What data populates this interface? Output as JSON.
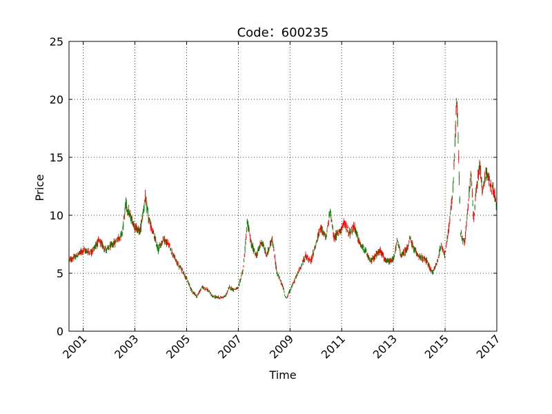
{
  "chart_data": {
    "type": "candlestick",
    "title": "Code：600235",
    "xlabel": "Time",
    "ylabel": "Price",
    "xlim": [
      2000.45,
      2017.0
    ],
    "ylim": [
      0,
      25
    ],
    "xticks": [
      {
        "value": 2001,
        "label": "2001"
      },
      {
        "value": 2003,
        "label": "2003"
      },
      {
        "value": 2005,
        "label": "2005"
      },
      {
        "value": 2007,
        "label": "2007"
      },
      {
        "value": 2009,
        "label": "2009"
      },
      {
        "value": 2011,
        "label": "2011"
      },
      {
        "value": 2013,
        "label": "2013"
      },
      {
        "value": 2015,
        "label": "2015"
      },
      {
        "value": 2017,
        "label": "2017"
      }
    ],
    "yticks": [
      {
        "value": 0,
        "label": "0"
      },
      {
        "value": 5,
        "label": "5"
      },
      {
        "value": 10,
        "label": "10"
      },
      {
        "value": 15,
        "label": "15"
      },
      {
        "value": 20,
        "label": "20"
      },
      {
        "value": 25,
        "label": "25"
      }
    ],
    "grid": true,
    "colors": {
      "up": "#ff0000",
      "down": "#008000"
    },
    "price_path": [
      [
        2000.45,
        6.1
      ],
      [
        2000.7,
        6.4
      ],
      [
        2001.0,
        7.0
      ],
      [
        2001.3,
        6.8
      ],
      [
        2001.6,
        7.8
      ],
      [
        2001.9,
        7.0
      ],
      [
        2002.2,
        7.6
      ],
      [
        2002.5,
        8.4
      ],
      [
        2002.65,
        11.0
      ],
      [
        2002.8,
        10.0
      ],
      [
        2003.0,
        9.0
      ],
      [
        2003.2,
        8.6
      ],
      [
        2003.4,
        11.5
      ],
      [
        2003.55,
        9.5
      ],
      [
        2003.7,
        8.5
      ],
      [
        2003.9,
        7.0
      ],
      [
        2004.1,
        8.0
      ],
      [
        2004.3,
        7.5
      ],
      [
        2004.6,
        6.0
      ],
      [
        2004.9,
        5.0
      ],
      [
        2005.2,
        3.5
      ],
      [
        2005.4,
        3.0
      ],
      [
        2005.6,
        3.8
      ],
      [
        2005.8,
        3.6
      ],
      [
        2006.0,
        3.0
      ],
      [
        2006.3,
        2.9
      ],
      [
        2006.5,
        3.0
      ],
      [
        2006.65,
        3.8
      ],
      [
        2006.8,
        3.6
      ],
      [
        2007.0,
        3.7
      ],
      [
        2007.2,
        5.5
      ],
      [
        2007.35,
        9.5
      ],
      [
        2007.5,
        7.5
      ],
      [
        2007.7,
        6.5
      ],
      [
        2007.9,
        7.8
      ],
      [
        2008.1,
        6.5
      ],
      [
        2008.3,
        8.0
      ],
      [
        2008.5,
        5.0
      ],
      [
        2008.7,
        4.0
      ],
      [
        2008.85,
        2.8
      ],
      [
        2009.0,
        3.5
      ],
      [
        2009.3,
        5.0
      ],
      [
        2009.6,
        6.5
      ],
      [
        2009.8,
        6.0
      ],
      [
        2010.0,
        7.5
      ],
      [
        2010.2,
        9.0
      ],
      [
        2010.4,
        8.0
      ],
      [
        2010.55,
        10.5
      ],
      [
        2010.7,
        8.0
      ],
      [
        2010.9,
        8.6
      ],
      [
        2011.1,
        9.3
      ],
      [
        2011.3,
        8.5
      ],
      [
        2011.5,
        9.0
      ],
      [
        2011.7,
        7.5
      ],
      [
        2011.9,
        7.0
      ],
      [
        2012.1,
        6.0
      ],
      [
        2012.3,
        6.5
      ],
      [
        2012.5,
        7.0
      ],
      [
        2012.7,
        6.0
      ],
      [
        2012.9,
        6.0
      ],
      [
        2013.0,
        6.2
      ],
      [
        2013.15,
        7.8
      ],
      [
        2013.3,
        6.5
      ],
      [
        2013.5,
        7.0
      ],
      [
        2013.65,
        8.0
      ],
      [
        2013.8,
        7.0
      ],
      [
        2014.0,
        6.5
      ],
      [
        2014.3,
        6.0
      ],
      [
        2014.5,
        5.0
      ],
      [
        2014.7,
        6.0
      ],
      [
        2014.85,
        7.5
      ],
      [
        2015.0,
        6.5
      ],
      [
        2015.15,
        9.0
      ],
      [
        2015.3,
        12.0
      ],
      [
        2015.45,
        20.0
      ],
      [
        2015.5,
        17.0
      ],
      [
        2015.6,
        8.5
      ],
      [
        2015.75,
        7.5
      ],
      [
        2015.9,
        11.0
      ],
      [
        2016.0,
        14.0
      ],
      [
        2016.1,
        9.5
      ],
      [
        2016.2,
        12.0
      ],
      [
        2016.35,
        14.5
      ],
      [
        2016.45,
        12.0
      ],
      [
        2016.6,
        14.0
      ],
      [
        2016.75,
        12.5
      ],
      [
        2016.9,
        12.0
      ],
      [
        2016.97,
        11.0
      ],
      [
        2017.0,
        10.5
      ]
    ]
  }
}
